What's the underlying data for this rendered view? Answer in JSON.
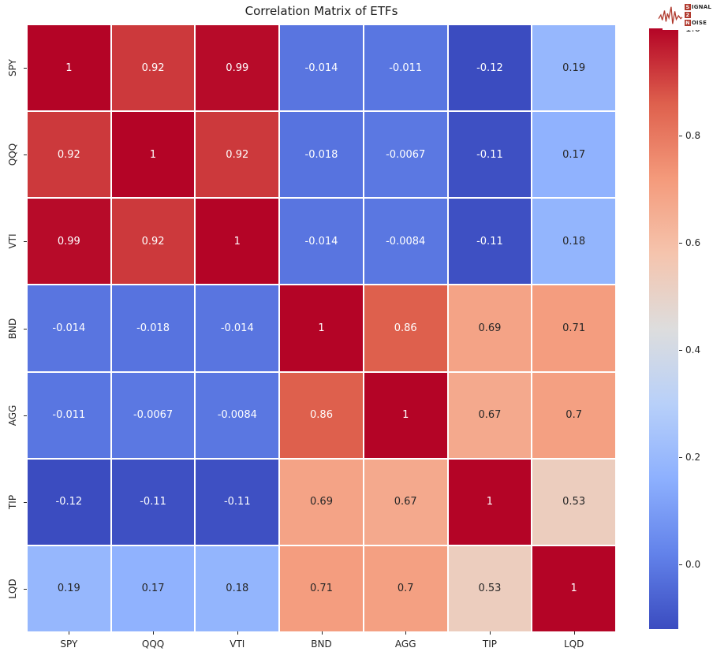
{
  "title": "Correlation Matrix of ETFs",
  "logo": {
    "name": "signal-2-noise",
    "line1_boxed": "S",
    "line1_rest": "IGNAL",
    "line2_boxed": "2",
    "line2_rest": "",
    "line3_boxed": "N",
    "line3_rest": "OISE",
    "accent_color": "#b03a2e"
  },
  "colors": {
    "annot_light": "#ffffff",
    "annot_dark": "#262626",
    "axis_text": "#262626",
    "colormap_anchors": [
      {
        "t": 0.0,
        "hex": "#3b4cc0"
      },
      {
        "t": 0.125,
        "hex": "#6282ea"
      },
      {
        "t": 0.25,
        "hex": "#8db0fe"
      },
      {
        "t": 0.375,
        "hex": "#b8d0f9"
      },
      {
        "t": 0.5,
        "hex": "#dddddd"
      },
      {
        "t": 0.625,
        "hex": "#f5c4ad"
      },
      {
        "t": 0.75,
        "hex": "#f49a7b"
      },
      {
        "t": 0.875,
        "hex": "#de604d"
      },
      {
        "t": 1.0,
        "hex": "#b40426"
      }
    ]
  },
  "chart_data": {
    "type": "heatmap",
    "title": "Correlation Matrix of ETFs",
    "categories": [
      "SPY",
      "QQQ",
      "VTI",
      "BND",
      "AGG",
      "TIP",
      "LQD"
    ],
    "matrix": [
      [
        1,
        0.92,
        0.99,
        -0.014,
        -0.011,
        -0.12,
        0.19
      ],
      [
        0.92,
        1,
        0.92,
        -0.018,
        -0.0067,
        -0.11,
        0.17
      ],
      [
        0.99,
        0.92,
        1,
        -0.014,
        -0.0084,
        -0.11,
        0.18
      ],
      [
        -0.014,
        -0.018,
        -0.014,
        1,
        0.86,
        0.69,
        0.71
      ],
      [
        -0.011,
        -0.0067,
        -0.0084,
        0.86,
        1,
        0.67,
        0.7
      ],
      [
        -0.12,
        -0.11,
        -0.11,
        0.69,
        0.67,
        1,
        0.53
      ],
      [
        0.19,
        0.17,
        0.18,
        0.71,
        0.7,
        0.53,
        1
      ]
    ],
    "cell_labels": [
      [
        "1",
        "0.92",
        "0.99",
        "-0.014",
        "-0.011",
        "-0.12",
        "0.19"
      ],
      [
        "0.92",
        "1",
        "0.92",
        "-0.018",
        "-0.0067",
        "-0.11",
        "0.17"
      ],
      [
        "0.99",
        "0.92",
        "1",
        "-0.014",
        "-0.0084",
        "-0.11",
        "0.18"
      ],
      [
        "-0.014",
        "-0.018",
        "-0.014",
        "1",
        "0.86",
        "0.69",
        "0.71"
      ],
      [
        "-0.011",
        "-0.0067",
        "-0.0084",
        "0.86",
        "1",
        "0.67",
        "0.7"
      ],
      [
        "-0.12",
        "-0.11",
        "-0.11",
        "0.69",
        "0.67",
        "1",
        "0.53"
      ],
      [
        "0.19",
        "0.17",
        "0.18",
        "0.71",
        "0.7",
        "0.53",
        "1"
      ]
    ],
    "colormap": "coolwarm",
    "vmin": -0.12,
    "vmax": 1.0,
    "gridline_color": "#ffffff",
    "legend_position": "right-colorbar",
    "colorbar_ticks": [
      "1.0",
      "0.8",
      "0.6",
      "0.4",
      "0.2",
      "0.0"
    ]
  }
}
